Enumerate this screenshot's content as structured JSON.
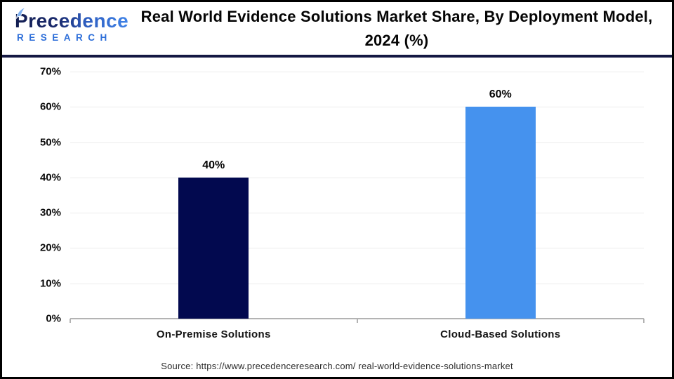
{
  "header": {
    "logo": {
      "word": "Precedence",
      "sub": "RESEARCH",
      "leaf_icon": "leaf-icon",
      "brand_navy": "#1a2a6e",
      "brand_blue": "#2e6fd9"
    },
    "title": "Real World Evidence Solutions Market Share, By Deployment Model, 2024 (%)",
    "separator_color": "#141843"
  },
  "chart_data": {
    "type": "bar",
    "title": "Real World Evidence Solutions Market Share, By Deployment Model, 2024 (%)",
    "categories": [
      "On-Premise Solutions",
      "Cloud-Based Solutions"
    ],
    "values": [
      40,
      60
    ],
    "value_labels": [
      "40%",
      "60%"
    ],
    "bar_colors": [
      "#02094f",
      "#4592ee"
    ],
    "xlabel": "",
    "ylabel": "",
    "ylim": [
      0,
      70
    ],
    "yticks": [
      0,
      10,
      20,
      30,
      40,
      50,
      60,
      70
    ],
    "ytick_labels": [
      "0%",
      "10%",
      "20%",
      "30%",
      "40%",
      "50%",
      "60%",
      "70%"
    ],
    "grid": "horizontal",
    "gridline_color": "#ececec",
    "baseline_color": "#b3b3b3",
    "legend": "none"
  },
  "footer": {
    "source": "Source: https://www.precedenceresearch.com/ real-world-evidence-solutions-market"
  }
}
